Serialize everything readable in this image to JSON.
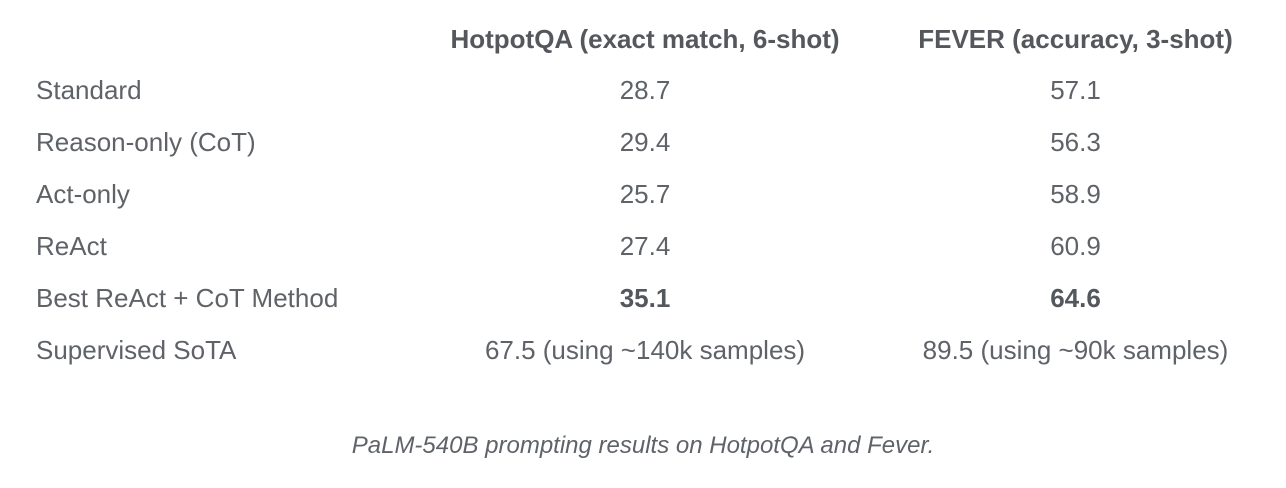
{
  "table": {
    "columns": {
      "method": "",
      "hotpotqa": "HotpotQA (exact match, 6-shot)",
      "fever": "FEVER (accuracy, 3-shot)"
    },
    "rows": [
      {
        "label": "Standard",
        "hotpotqa": "28.7",
        "fever": "57.1"
      },
      {
        "label": "Reason-only (CoT)",
        "hotpotqa": "29.4",
        "fever": "56.3"
      },
      {
        "label": "Act-only",
        "hotpotqa": "25.7",
        "fever": "58.9"
      },
      {
        "label": "ReAct",
        "hotpotqa": "27.4",
        "fever": "60.9"
      },
      {
        "label": "Best ReAct + CoT Method",
        "hotpotqa": "35.1",
        "fever": "64.6"
      },
      {
        "label": "Supervised SoTA",
        "hotpotqa": "67.5 (using ~140k samples)",
        "fever": "89.5 (using ~90k samples)"
      }
    ]
  },
  "caption": "PaLM-540B prompting results on HotpotQA and Fever.",
  "colors": {
    "background": "#ffffff",
    "body_text": "#5f6368",
    "header_text": "#54575c"
  },
  "chart_data": {
    "type": "table",
    "title": "PaLM-540B prompting results on HotpotQA and Fever.",
    "categories": [
      "Standard",
      "Reason-only (CoT)",
      "Act-only",
      "ReAct",
      "Best ReAct + CoT Method",
      "Supervised SoTA"
    ],
    "series": [
      {
        "name": "HotpotQA (exact match, 6-shot)",
        "values": [
          28.7,
          29.4,
          25.7,
          27.4,
          35.1,
          67.5
        ]
      },
      {
        "name": "FEVER (accuracy, 3-shot)",
        "values": [
          57.1,
          56.3,
          58.9,
          60.9,
          64.6,
          89.5
        ]
      }
    ],
    "notes": {
      "bold_row": "Best ReAct + CoT Method",
      "supervised_sota_hotpotqa_samples": "~140k samples",
      "supervised_sota_fever_samples": "~90k samples"
    }
  }
}
